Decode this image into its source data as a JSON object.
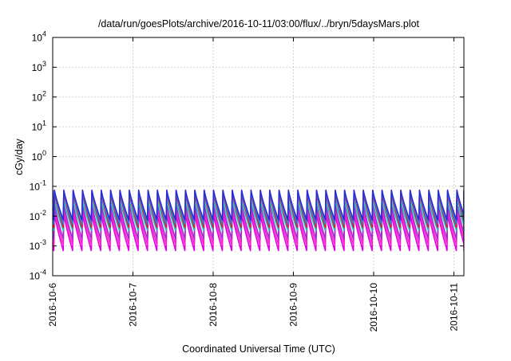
{
  "chart_data": {
    "type": "line",
    "title": "/data/run/goesPlots/archive/2016-10-11/03:00/flux/../bryn/5daysMars.plot",
    "xlabel": "Coordinated Universal Time (UTC)",
    "ylabel": "cGy/day",
    "yscale": "log",
    "ylim": [
      0.0001,
      10000
    ],
    "y_ticks": [
      {
        "mantissa": "10",
        "exp": "-4",
        "value": 0.0001
      },
      {
        "mantissa": "10",
        "exp": "-3",
        "value": 0.001
      },
      {
        "mantissa": "10",
        "exp": "-2",
        "value": 0.01
      },
      {
        "mantissa": "10",
        "exp": "-1",
        "value": 0.1
      },
      {
        "mantissa": "10",
        "exp": "0",
        "value": 1
      },
      {
        "mantissa": "10",
        "exp": "1",
        "value": 10
      },
      {
        "mantissa": "10",
        "exp": "2",
        "value": 100
      },
      {
        "mantissa": "10",
        "exp": "3",
        "value": 1000
      },
      {
        "mantissa": "10",
        "exp": "4",
        "value": 10000
      }
    ],
    "x_ticks": [
      "2016-10-6",
      "2016-10-7",
      "2016-10-8",
      "2016-10-9",
      "2016-10-10",
      "2016-10-11"
    ],
    "xlim": [
      "2016-10-06 00:00",
      "2016-10-11 03:00"
    ],
    "grid": true,
    "legend": "none",
    "pattern": {
      "description_free": true,
      "period_hours": 2.8,
      "phase_hours": 0.35
    },
    "series": [
      {
        "color": "#2b2bd6",
        "peak": 0.075,
        "trough": 0.0075
      },
      {
        "color": "#3a7fd8",
        "peak": 0.07,
        "trough": 0.0055
      },
      {
        "color": "#d81f2a",
        "peak": 0.06,
        "trough": 0.0042
      },
      {
        "color": "#1cbfc6",
        "peak": 0.035,
        "trough": 0.0033
      },
      {
        "color": "#a02ec8",
        "peak": 0.025,
        "trough": 0.0017
      },
      {
        "color": "#ff1fd0",
        "peak": 0.018,
        "trough": 0.0011
      },
      {
        "color": "#e100e1",
        "peak": 0.012,
        "trough": 0.0007
      }
    ]
  }
}
